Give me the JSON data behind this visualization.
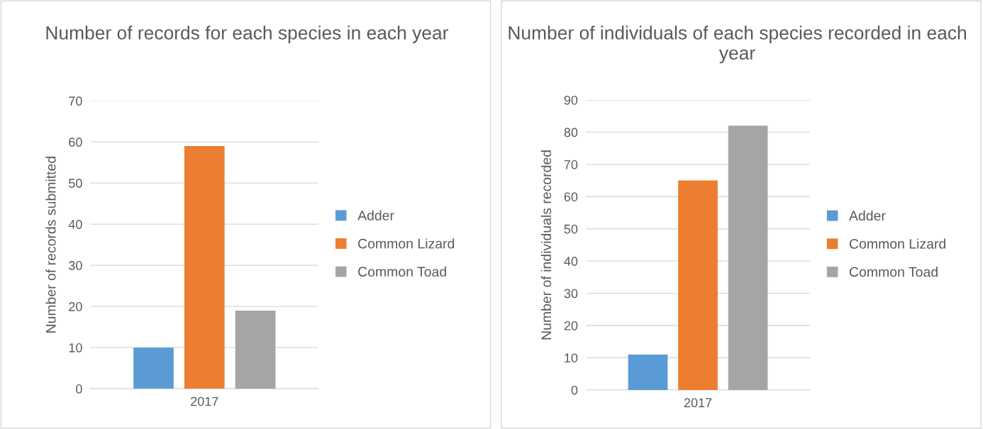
{
  "chart_data": [
    {
      "type": "bar",
      "title": "Number of records for each species in each year",
      "ylabel": "Number of records submitted",
      "categories": [
        null,
        "2017",
        null
      ],
      "series": [
        {
          "name": "Adder",
          "color": "#5b9bd5",
          "values": [
            10,
            null,
            null
          ]
        },
        {
          "name": "Common Lizard",
          "color": "#ed7d31",
          "values": [
            null,
            59,
            null
          ]
        },
        {
          "name": "Common Toad",
          "color": "#a5a5a5",
          "values": [
            null,
            null,
            19
          ]
        }
      ],
      "ylim": [
        0,
        70
      ],
      "yticks": [
        0,
        10,
        20,
        30,
        40,
        50,
        60,
        70
      ],
      "grid": "y",
      "legend": "right"
    },
    {
      "type": "bar",
      "title": "Number of individuals of each species recorded in each year",
      "ylabel": "Number of individuals recorded",
      "categories": [
        null,
        "2017",
        null
      ],
      "series": [
        {
          "name": "Adder",
          "color": "#5b9bd5",
          "values": [
            11,
            null,
            null
          ]
        },
        {
          "name": "Common Lizard",
          "color": "#ed7d31",
          "values": [
            null,
            65,
            null
          ]
        },
        {
          "name": "Common Toad",
          "color": "#a5a5a5",
          "values": [
            null,
            null,
            82
          ]
        }
      ],
      "ylim": [
        0,
        90
      ],
      "yticks": [
        0,
        10,
        20,
        30,
        40,
        50,
        60,
        70,
        80,
        90
      ],
      "grid": "y",
      "legend": "right"
    }
  ]
}
